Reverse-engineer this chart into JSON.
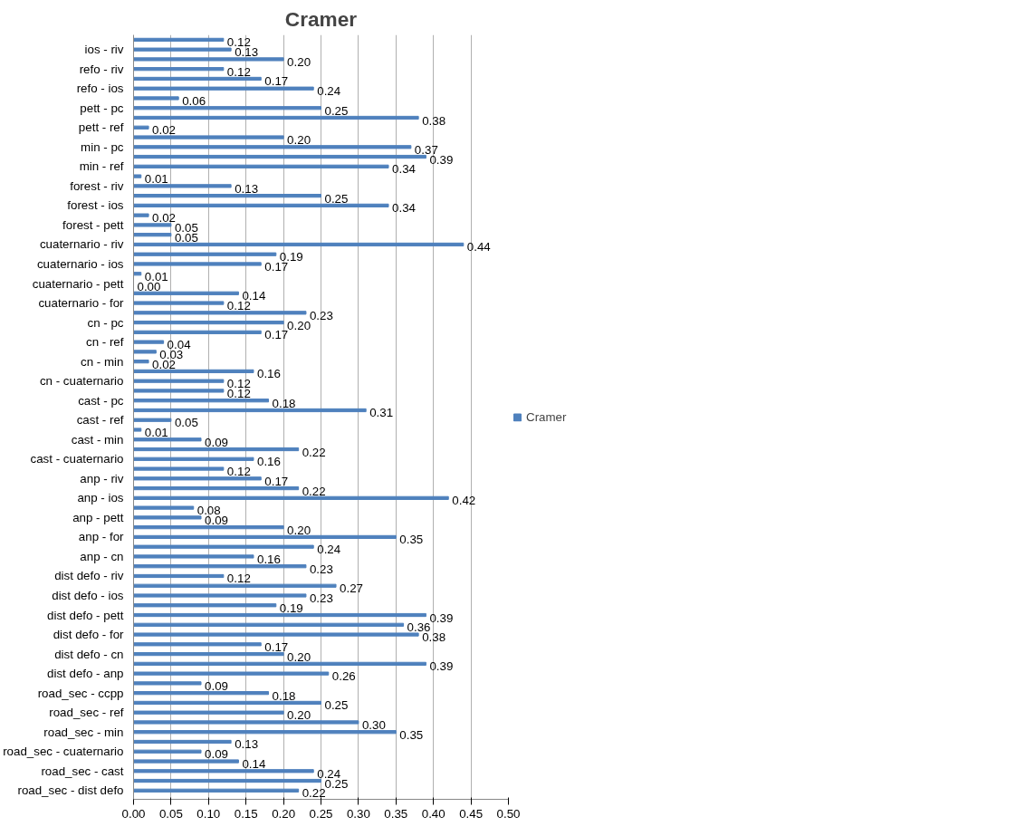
{
  "chart_data": {
    "type": "bar",
    "orientation": "horizontal",
    "title": "Cramer",
    "categories": [
      null,
      "ios - riv",
      null,
      "refo - riv",
      null,
      "refo - ios",
      null,
      "pett - pc",
      null,
      "pett - ref",
      null,
      "min - pc",
      null,
      "min - ref",
      null,
      "forest - riv",
      null,
      "forest - ios",
      null,
      "forest - pett",
      null,
      "cuaternario - riv",
      null,
      "cuaternario - ios",
      null,
      "cuaternario - pett",
      null,
      "cuaternario - for",
      null,
      "cn - pc",
      null,
      "cn - ref",
      null,
      "cn - min",
      null,
      "cn - cuaternario",
      null,
      "cast - pc",
      null,
      "cast - ref",
      null,
      "cast - min",
      null,
      "cast - cuaternario",
      null,
      "anp - riv",
      null,
      "anp - ios",
      null,
      "anp - pett",
      null,
      "anp - for",
      null,
      "anp - cn",
      null,
      "dist defo - riv",
      null,
      "dist defo - ios",
      null,
      "dist defo - pett",
      null,
      "dist defo - for",
      null,
      "dist defo - cn",
      null,
      "dist defo - anp",
      null,
      "road_sec - ccpp",
      null,
      "road_sec - ref",
      null,
      "road_sec - min",
      null,
      "road_sec - cuaternario",
      null,
      "road_sec - cast",
      null,
      "road_sec - dist defo"
    ],
    "series": [
      {
        "name": "Cramer",
        "color": "#4f81bd",
        "values": [
          0.12,
          0.13,
          0.2,
          0.12,
          0.17,
          0.24,
          0.06,
          0.25,
          0.38,
          0.02,
          0.2,
          0.37,
          0.39,
          0.34,
          0.01,
          0.13,
          0.25,
          0.34,
          0.02,
          0.05,
          0.05,
          0.44,
          0.19,
          0.17,
          0.01,
          0.0,
          0.14,
          0.12,
          0.23,
          0.2,
          0.17,
          0.04,
          0.03,
          0.02,
          0.16,
          0.12,
          0.12,
          0.18,
          0.31,
          0.05,
          0.01,
          0.09,
          0.22,
          0.16,
          0.12,
          0.17,
          0.22,
          0.42,
          0.08,
          0.09,
          0.2,
          0.35,
          0.24,
          0.16,
          0.23,
          0.12,
          0.27,
          0.23,
          0.19,
          0.39,
          0.36,
          0.38,
          0.17,
          0.2,
          0.39,
          0.26,
          0.09,
          0.18,
          0.25,
          0.2,
          0.3,
          0.35,
          0.13,
          0.09,
          0.14,
          0.24,
          0.25,
          0.22
        ]
      }
    ],
    "value_labels": [
      "0.12",
      "0.13",
      "0.20",
      "0.12",
      "0.17",
      "0.24",
      "0.06",
      "0.25",
      "0.38",
      "0.02",
      "0.20",
      "0.37",
      "0.39",
      "0.34",
      "0.01",
      "0.13",
      "0.25",
      "0.34",
      "0.02",
      "0.05",
      "0.05",
      "0.44",
      "0.19",
      "0.17",
      "0.01",
      "0.00",
      "0.14",
      "0.12",
      "0.23",
      "0.20",
      "0.17",
      "0.04",
      "0.03",
      "0.02",
      "0.16",
      "0.12",
      "0.12",
      "0.18",
      "0.31",
      "0.05",
      "0.01",
      "0.09",
      "0.22",
      "0.16",
      "0.12",
      "0.17",
      "0.22",
      "0.42",
      "0.08",
      "0.09",
      "0.20",
      "0.35",
      "0.24",
      "0.16",
      "0.23",
      "0.12",
      "0.27",
      "0.23",
      "0.19",
      "0.39",
      "0.36",
      "0.38",
      "0.17",
      "0.20",
      "0.39",
      "0.26",
      "0.09",
      "0.18",
      "0.25",
      "0.20",
      "0.30",
      "0.35",
      "0.13",
      "0.09",
      "0.14",
      "0.24",
      "0.25",
      "0.22"
    ],
    "xlim": [
      0,
      0.5
    ],
    "xticks": [
      {
        "value": 0,
        "label": "0.00"
      },
      {
        "value": 0.05,
        "label": "0.05"
      },
      {
        "value": 0.1,
        "label": "0.10"
      },
      {
        "value": 0.15,
        "label": "0.15"
      },
      {
        "value": 0.2,
        "label": "0.20"
      },
      {
        "value": 0.25,
        "label": "0.25"
      },
      {
        "value": 0.3,
        "label": "0.30"
      },
      {
        "value": 0.35,
        "label": "0.35"
      },
      {
        "value": 0.4,
        "label": "0.40"
      },
      {
        "value": 0.45,
        "label": "0.45"
      },
      {
        "value": 0.5,
        "label": "0.50"
      }
    ],
    "grid": "x",
    "legend": "right"
  }
}
